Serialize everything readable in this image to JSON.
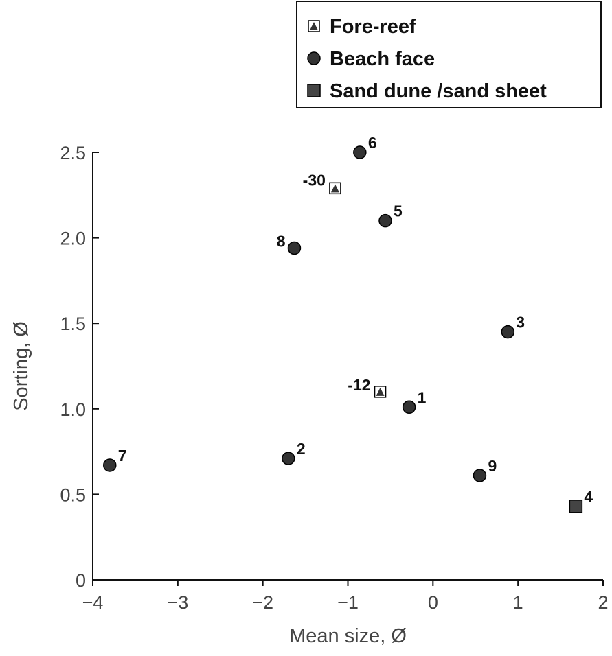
{
  "chart_data": {
    "type": "scatter",
    "xlabel": "Mean size, Ø",
    "ylabel": "Sorting, Ø",
    "xlim": [
      -4,
      2
    ],
    "ylim": [
      0,
      2.5
    ],
    "xticks": [
      -4,
      -3,
      -2,
      -1,
      0,
      1,
      2
    ],
    "yticks": [
      0,
      0.5,
      1.0,
      1.5,
      2.0,
      2.5
    ],
    "xtick_labels": [
      "−4",
      "−3",
      "−2",
      "−1",
      "0",
      "1",
      "2"
    ],
    "ytick_labels": [
      "0",
      "0.5",
      "1.0",
      "1.5",
      "2.0",
      "2.5"
    ],
    "grid": false,
    "legend_position": "top-right",
    "series": [
      {
        "name": "Fore-reef",
        "marker": "triangle-in-square",
        "color": "#333333",
        "points": [
          {
            "label": "-30",
            "x": -1.15,
            "y": 2.29
          },
          {
            "label": "-12",
            "x": -0.62,
            "y": 1.1
          }
        ]
      },
      {
        "name": "Beach face",
        "marker": "circle",
        "color": "#333333",
        "points": [
          {
            "label": "1",
            "x": -0.28,
            "y": 1.01
          },
          {
            "label": "2",
            "x": -1.7,
            "y": 0.71
          },
          {
            "label": "3",
            "x": 0.88,
            "y": 1.45
          },
          {
            "label": "5",
            "x": -0.56,
            "y": 2.1
          },
          {
            "label": "6",
            "x": -0.86,
            "y": 2.5
          },
          {
            "label": "7",
            "x": -3.8,
            "y": 0.67
          },
          {
            "label": "8",
            "x": -1.63,
            "y": 1.94
          },
          {
            "label": "9",
            "x": 0.55,
            "y": 0.61
          }
        ]
      },
      {
        "name": "Sand dune /sand sheet",
        "marker": "square",
        "color": "#444444",
        "points": [
          {
            "label": "4",
            "x": 1.68,
            "y": 0.43
          }
        ]
      }
    ]
  }
}
